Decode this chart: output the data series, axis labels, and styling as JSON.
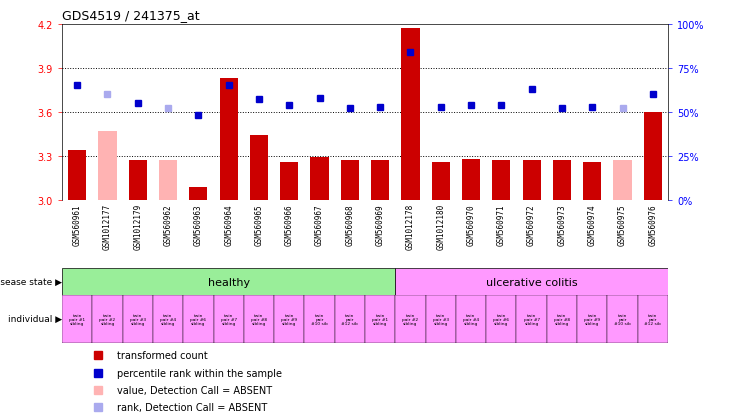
{
  "title": "GDS4519 / 241375_at",
  "samples": [
    "GSM560961",
    "GSM1012177",
    "GSM1012179",
    "GSM560962",
    "GSM560963",
    "GSM560964",
    "GSM560965",
    "GSM560966",
    "GSM560967",
    "GSM560968",
    "GSM560969",
    "GSM1012178",
    "GSM1012180",
    "GSM560970",
    "GSM560971",
    "GSM560972",
    "GSM560973",
    "GSM560974",
    "GSM560975",
    "GSM560976"
  ],
  "bar_values": [
    3.34,
    3.47,
    3.27,
    3.27,
    3.09,
    3.83,
    3.44,
    3.26,
    3.29,
    3.27,
    3.27,
    4.17,
    3.26,
    3.28,
    3.27,
    3.27,
    3.27,
    3.26,
    3.27,
    3.6
  ],
  "bar_absent": [
    false,
    true,
    false,
    true,
    false,
    false,
    false,
    false,
    false,
    false,
    false,
    false,
    false,
    false,
    false,
    false,
    false,
    false,
    true,
    false
  ],
  "dot_percentile": [
    65,
    60,
    55,
    52,
    48,
    65,
    57,
    54,
    58,
    52,
    53,
    84,
    53,
    54,
    54,
    63,
    52,
    53,
    52,
    60
  ],
  "dot_absent": [
    false,
    true,
    false,
    true,
    false,
    false,
    false,
    false,
    false,
    false,
    false,
    false,
    false,
    false,
    false,
    false,
    false,
    false,
    true,
    false
  ],
  "disease_state_split": 11,
  "individuals": [
    "twin\npair #1\nsibling",
    "twin\npair #2\nsibling",
    "twin\npair #3\nsibling",
    "twin\npair #4\nsibling",
    "twin\npair #6\nsibling",
    "twin\npair #7\nsibling",
    "twin\npair #8\nsibling",
    "twin\npair #9\nsibling",
    "twin\npair\n#10 sib",
    "twin\npair\n#12 sib",
    "twin\npair #1\nsibling",
    "twin\npair #2\nsibling",
    "twin\npair #3\nsibling",
    "twin\npair #4\nsibling",
    "twin\npair #6\nsibling",
    "twin\npair #7\nsibling",
    "twin\npair #8\nsibling",
    "twin\npair #9\nsibling",
    "twin\npair\n#10 sib",
    "twin\npair\n#12 sib"
  ],
  "ylim_left": [
    3.0,
    4.2
  ],
  "ylim_right": [
    0,
    100
  ],
  "yticks_left": [
    3.0,
    3.3,
    3.6,
    3.9,
    4.2
  ],
  "yticks_right": [
    0,
    25,
    50,
    75,
    100
  ],
  "ytick_labels_right": [
    "0%",
    "25%",
    "50%",
    "75%",
    "100%"
  ],
  "hlines": [
    3.3,
    3.6,
    3.9
  ],
  "bar_color": "#cc0000",
  "bar_absent_color": "#ffb3b3",
  "dot_color": "#0000cc",
  "dot_absent_color": "#aaaaee",
  "healthy_color": "#99ee99",
  "uc_color": "#ff99ff",
  "sample_bg_color": "#cccccc",
  "n_samples": 20
}
